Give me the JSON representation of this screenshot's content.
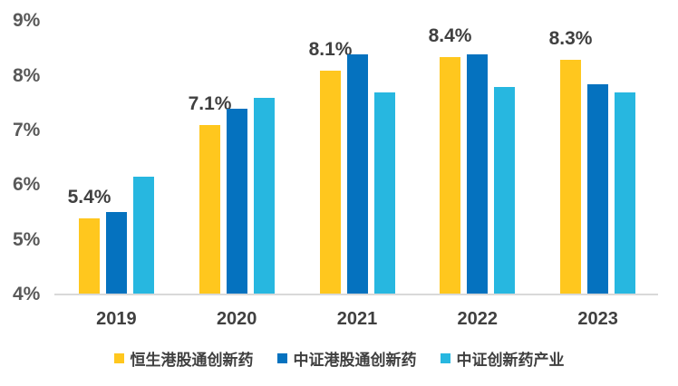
{
  "chart_data": {
    "type": "bar",
    "title": "",
    "categories": [
      "2019",
      "2020",
      "2021",
      "2022",
      "2023"
    ],
    "series": [
      {
        "name": "恒生港股通创新药",
        "color": "#FFC71E",
        "values": [
          5.4,
          7.1,
          8.1,
          8.35,
          8.3
        ],
        "data_labels": [
          "5.4%",
          "7.1%",
          "8.1%",
          "8.4%",
          "8.3%"
        ]
      },
      {
        "name": "中证港股通创新药",
        "color": "#0572BF",
        "values": [
          5.5,
          7.4,
          8.4,
          8.4,
          7.85
        ],
        "data_labels": []
      },
      {
        "name": "中证创新药产业",
        "color": "#27B7E0",
        "values": [
          6.15,
          7.6,
          7.7,
          7.8,
          7.7
        ],
        "data_labels": []
      }
    ],
    "xlabel": "",
    "ylabel": "",
    "ylim": [
      4,
      9
    ],
    "yticks": [
      {
        "value": 4,
        "label": "4%"
      },
      {
        "value": 5,
        "label": "5%"
      },
      {
        "value": 6,
        "label": "6%"
      },
      {
        "value": 7,
        "label": "7%"
      },
      {
        "value": 8,
        "label": "8%"
      },
      {
        "value": 9,
        "label": "9%"
      }
    ],
    "grid": false,
    "legend_position": "bottom",
    "axis_line_color": "#D9D9D9",
    "ytick_color": "#595959",
    "xtick_color": "#404040",
    "data_label_color": "#404040"
  }
}
